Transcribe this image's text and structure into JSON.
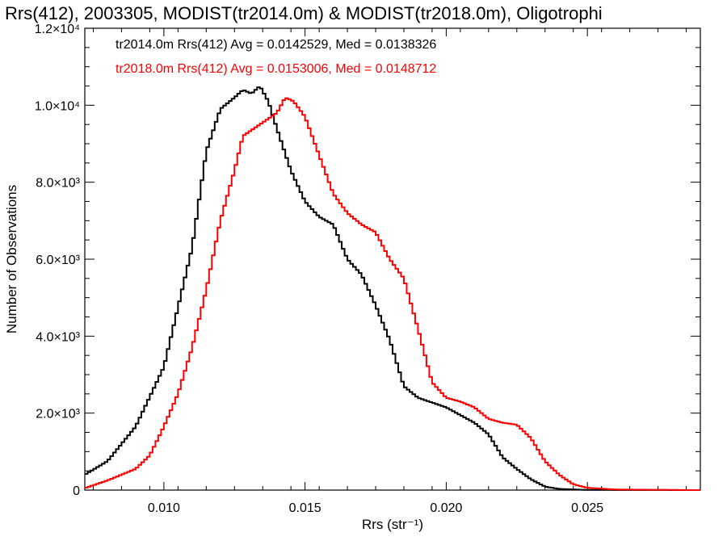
{
  "chart_data": {
    "type": "line",
    "title": "Rrs(412), 2003305, MODIST(tr2014.0m) & MODIST(tr2018.0m), Oligotrophi",
    "xlabel": "Rrs (str⁻¹)",
    "ylabel": "Number of Observations",
    "xlim": [
      0.0072,
      0.029
    ],
    "ylim": [
      0,
      12000
    ],
    "x_ticks": [
      {
        "value": 0.01,
        "label": "0.010"
      },
      {
        "value": 0.015,
        "label": "0.015"
      },
      {
        "value": 0.02,
        "label": "0.020"
      },
      {
        "value": 0.025,
        "label": "0.025"
      }
    ],
    "y_ticks": [
      {
        "value": 0,
        "label": "0"
      },
      {
        "value": 2000,
        "label": "2.0×10³"
      },
      {
        "value": 4000,
        "label": "4.0×10³"
      },
      {
        "value": 6000,
        "label": "6.0×10³"
      },
      {
        "value": 8000,
        "label": "8.0×10³"
      },
      {
        "value": 10000,
        "label": "1.0×10⁴"
      },
      {
        "value": 12000,
        "label": "1.2×10⁴"
      }
    ],
    "annotations": [
      {
        "text": "tr2014.0m Rrs(412) Avg = 0.0142529, Med = 0.0138326",
        "color": "#000000"
      },
      {
        "text": "tr2018.0m Rrs(412) Avg = 0.0153006, Med = 0.0148712",
        "color": "#ff0000"
      }
    ],
    "series": [
      {
        "color": "#000000",
        "points": [
          [
            0.0072,
            400
          ],
          [
            0.008,
            750
          ],
          [
            0.009,
            1650
          ],
          [
            0.01,
            3200
          ],
          [
            0.011,
            6300
          ],
          [
            0.0115,
            8800
          ],
          [
            0.012,
            9900
          ],
          [
            0.0125,
            10200
          ],
          [
            0.0128,
            10400
          ],
          [
            0.0131,
            10300
          ],
          [
            0.0134,
            10500
          ],
          [
            0.0137,
            10100
          ],
          [
            0.014,
            9400
          ],
          [
            0.0145,
            8300
          ],
          [
            0.015,
            7500
          ],
          [
            0.0155,
            7100
          ],
          [
            0.016,
            6900
          ],
          [
            0.0165,
            6000
          ],
          [
            0.017,
            5600
          ],
          [
            0.0175,
            4800
          ],
          [
            0.018,
            3900
          ],
          [
            0.0185,
            2700
          ],
          [
            0.019,
            2400
          ],
          [
            0.02,
            2150
          ],
          [
            0.0205,
            1950
          ],
          [
            0.021,
            1750
          ],
          [
            0.0215,
            1450
          ],
          [
            0.022,
            850
          ],
          [
            0.0225,
            550
          ],
          [
            0.023,
            280
          ],
          [
            0.0235,
            90
          ],
          [
            0.024,
            30
          ],
          [
            0.025,
            5
          ],
          [
            0.029,
            0
          ]
        ]
      },
      {
        "color": "#ff0000",
        "points": [
          [
            0.0072,
            50
          ],
          [
            0.008,
            250
          ],
          [
            0.009,
            550
          ],
          [
            0.0095,
            900
          ],
          [
            0.01,
            1650
          ],
          [
            0.0105,
            2500
          ],
          [
            0.011,
            3700
          ],
          [
            0.0115,
            5200
          ],
          [
            0.012,
            7000
          ],
          [
            0.0125,
            8300
          ],
          [
            0.0128,
            9200
          ],
          [
            0.0132,
            9400
          ],
          [
            0.0136,
            9600
          ],
          [
            0.014,
            9800
          ],
          [
            0.0143,
            10200
          ],
          [
            0.0146,
            10100
          ],
          [
            0.015,
            9700
          ],
          [
            0.0155,
            8700
          ],
          [
            0.016,
            7700
          ],
          [
            0.0165,
            7200
          ],
          [
            0.017,
            6900
          ],
          [
            0.0175,
            6700
          ],
          [
            0.018,
            6000
          ],
          [
            0.0185,
            5500
          ],
          [
            0.019,
            4200
          ],
          [
            0.0195,
            2800
          ],
          [
            0.02,
            2400
          ],
          [
            0.0205,
            2300
          ],
          [
            0.021,
            2150
          ],
          [
            0.0215,
            1850
          ],
          [
            0.022,
            1750
          ],
          [
            0.0225,
            1700
          ],
          [
            0.023,
            1350
          ],
          [
            0.0235,
            750
          ],
          [
            0.024,
            400
          ],
          [
            0.0245,
            150
          ],
          [
            0.025,
            60
          ],
          [
            0.026,
            15
          ],
          [
            0.029,
            0
          ]
        ]
      }
    ]
  }
}
